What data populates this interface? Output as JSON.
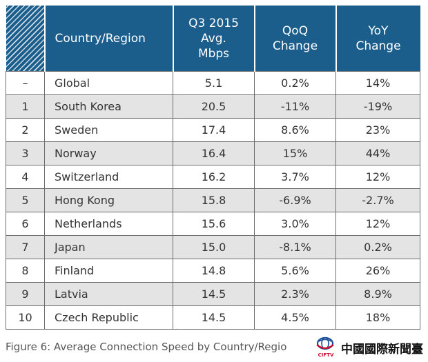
{
  "table": {
    "headers": {
      "rank": "",
      "country": "Country/Region",
      "speed": [
        "Q3 2015",
        "Avg.",
        "Mbps"
      ],
      "qoq": [
        "QoQ",
        "Change"
      ],
      "yoy": [
        "YoY",
        "Change"
      ]
    },
    "rows": [
      {
        "rank": "–",
        "country": "Global",
        "speed": "5.1",
        "qoq": "0.2%",
        "yoy": "14%"
      },
      {
        "rank": "1",
        "country": "South Korea",
        "speed": "20.5",
        "qoq": "-11%",
        "yoy": "-19%"
      },
      {
        "rank": "2",
        "country": "Sweden",
        "speed": "17.4",
        "qoq": "8.6%",
        "yoy": "23%"
      },
      {
        "rank": "3",
        "country": "Norway",
        "speed": "16.4",
        "qoq": "15%",
        "yoy": "44%"
      },
      {
        "rank": "4",
        "country": "Switzerland",
        "speed": "16.2",
        "qoq": "3.7%",
        "yoy": "12%"
      },
      {
        "rank": "5",
        "country": "Hong Kong",
        "speed": "15.8",
        "qoq": "-6.9%",
        "yoy": "-2.7%"
      },
      {
        "rank": "6",
        "country": "Netherlands",
        "speed": "15.6",
        "qoq": "3.0%",
        "yoy": "12%"
      },
      {
        "rank": "7",
        "country": "Japan",
        "speed": "15.0",
        "qoq": "-8.1%",
        "yoy": "0.2%"
      },
      {
        "rank": "8",
        "country": "Finland",
        "speed": "14.8",
        "qoq": "5.6%",
        "yoy": "26%"
      },
      {
        "rank": "9",
        "country": "Latvia",
        "speed": "14.5",
        "qoq": "2.3%",
        "yoy": "8.9%"
      },
      {
        "rank": "10",
        "country": "Czech Republic",
        "speed": "14.5",
        "qoq": "4.5%",
        "yoy": "18%"
      }
    ]
  },
  "caption": "Figure 6: Average Connection Speed by Country/Regio",
  "watermark": {
    "name": "中國國際新聞臺",
    "abbr": "CIFTV"
  },
  "colors": {
    "header_bg": "#1b5e8c",
    "stripe_bg": "#e4e4e4",
    "watermark_red": "#c8102e",
    "watermark_blue": "#1a4f9c"
  }
}
